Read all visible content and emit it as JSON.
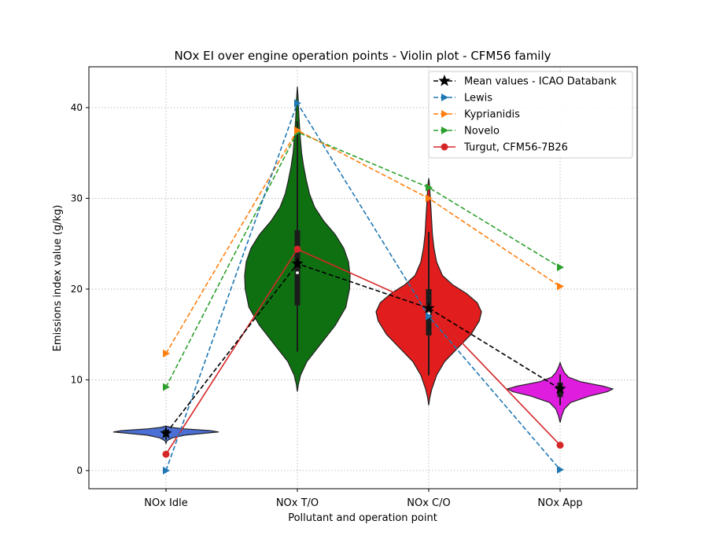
{
  "chart_data": {
    "type": "violin",
    "title": "NOx EI over engine operation points - Violin plot - CFM56 family",
    "xlabel": "Pollutant and operation point",
    "ylabel": "Emissions index value (g/kg)",
    "categories": [
      "NOx Idle",
      "NOx T/O",
      "NOx C/O",
      "NOx App"
    ],
    "ylim": [
      -2.0,
      44.5
    ],
    "yticks": [
      0,
      10,
      20,
      30,
      40
    ],
    "grid": true,
    "legend_position": "upper right",
    "violins": [
      {
        "category": "NOx Idle",
        "color": "#4c6fd6",
        "min": 3.0,
        "max": 4.9,
        "q1": 4.1,
        "median": 4.3,
        "q3": 4.5,
        "whisker_low": 3.4,
        "whisker_high": 4.8,
        "density": [
          [
            3.0,
            0.0
          ],
          [
            3.3,
            0.02
          ],
          [
            3.6,
            0.12
          ],
          [
            3.9,
            0.35
          ],
          [
            4.1,
            0.7
          ],
          [
            4.25,
            1.0
          ],
          [
            4.4,
            0.85
          ],
          [
            4.6,
            0.35
          ],
          [
            4.75,
            0.1
          ],
          [
            4.9,
            0.0
          ]
        ]
      },
      {
        "category": "NOx T/O",
        "color": "#0f7012",
        "min": 8.7,
        "max": 42.3,
        "q1": 18.2,
        "median": 21.8,
        "q3": 26.5,
        "whisker_low": 13.1,
        "whisker_high": 38.5,
        "density": [
          [
            8.7,
            0.0
          ],
          [
            9.5,
            0.02
          ],
          [
            10.5,
            0.06
          ],
          [
            12,
            0.18
          ],
          [
            14,
            0.45
          ],
          [
            16,
            0.72
          ],
          [
            18,
            0.92
          ],
          [
            20,
            0.99
          ],
          [
            21.5,
            1.0
          ],
          [
            23,
            0.97
          ],
          [
            24.5,
            0.88
          ],
          [
            26,
            0.72
          ],
          [
            27.5,
            0.5
          ],
          [
            29,
            0.33
          ],
          [
            30.5,
            0.23
          ],
          [
            32,
            0.17
          ],
          [
            33.5,
            0.12
          ],
          [
            35,
            0.08
          ],
          [
            37,
            0.05
          ],
          [
            39,
            0.03
          ],
          [
            41,
            0.015
          ],
          [
            42.3,
            0.0
          ]
        ]
      },
      {
        "category": "NOx C/O",
        "color": "#e11d1d",
        "min": 7.2,
        "max": 32.2,
        "q1": 14.9,
        "median": 17.3,
        "q3": 20.0,
        "whisker_low": 10.5,
        "whisker_high": 26.3,
        "density": [
          [
            7.2,
            0.0
          ],
          [
            8,
            0.02
          ],
          [
            9,
            0.06
          ],
          [
            10.5,
            0.15
          ],
          [
            12,
            0.3
          ],
          [
            13.5,
            0.55
          ],
          [
            15,
            0.8
          ],
          [
            16.5,
            0.96
          ],
          [
            17.5,
            1.0
          ],
          [
            18.5,
            0.92
          ],
          [
            19.5,
            0.72
          ],
          [
            20.5,
            0.45
          ],
          [
            21.5,
            0.26
          ],
          [
            23,
            0.15
          ],
          [
            24.5,
            0.1
          ],
          [
            26,
            0.07
          ],
          [
            28,
            0.05
          ],
          [
            30,
            0.03
          ],
          [
            31.5,
            0.015
          ],
          [
            32.2,
            0.0
          ]
        ]
      },
      {
        "category": "NOx App",
        "color": "#df1ddf",
        "min": 5.3,
        "max": 11.9,
        "q1": 8.1,
        "median": 8.9,
        "q3": 9.7,
        "whisker_low": 7.2,
        "whisker_high": 10.6,
        "density": [
          [
            5.3,
            0.0
          ],
          [
            6,
            0.03
          ],
          [
            6.8,
            0.08
          ],
          [
            7.5,
            0.2
          ],
          [
            8.2,
            0.55
          ],
          [
            8.7,
            0.9
          ],
          [
            9.0,
            1.0
          ],
          [
            9.3,
            0.82
          ],
          [
            9.8,
            0.38
          ],
          [
            10.3,
            0.16
          ],
          [
            10.8,
            0.08
          ],
          [
            11.4,
            0.03
          ],
          [
            11.9,
            0.0
          ]
        ]
      }
    ],
    "series": [
      {
        "name": "Mean values - ICAO Databank",
        "color": "#000000",
        "linestyle": "dashed",
        "marker": "star",
        "values": [
          4.1,
          22.8,
          17.9,
          9.0
        ]
      },
      {
        "name": "Lewis",
        "color": "#1f77b4",
        "linestyle": "dashed",
        "marker": "triangle-right",
        "values": [
          0.0,
          40.5,
          17.0,
          0.1
        ]
      },
      {
        "name": "Kyprianidis",
        "color": "#ff7f0e",
        "linestyle": "dashed",
        "marker": "triangle-right",
        "values": [
          12.9,
          37.5,
          30.0,
          20.3
        ]
      },
      {
        "name": "Novelo",
        "color": "#2ca02c",
        "linestyle": "dashed",
        "marker": "triangle-right",
        "values": [
          9.2,
          37.3,
          31.2,
          22.4
        ]
      },
      {
        "name": "Turgut, CFM56-7B26",
        "color": "#d62728",
        "linestyle": "solid",
        "marker": "circle",
        "values": [
          1.8,
          24.4,
          17.9,
          2.8
        ]
      }
    ]
  }
}
